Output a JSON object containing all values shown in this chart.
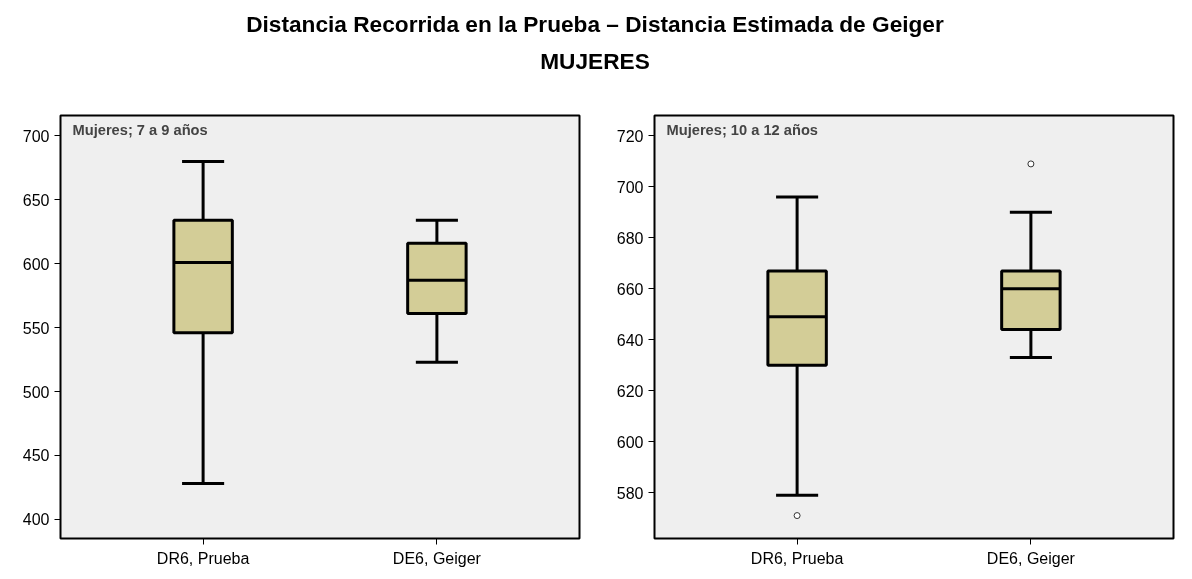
{
  "chart_data": [
    {
      "type": "box",
      "title": "Distancia Recorrida en la Prueba – Distancia Estimada de Geiger",
      "subtitle": "MUJERES",
      "annotations": [
        "Mujeres; 7 a 9 años"
      ],
      "categories": [
        "DR6, Prueba",
        "DE6, Geiger"
      ],
      "color": "#d3cd97",
      "ylim": [
        385,
        716
      ],
      "yticks": [
        400,
        450,
        500,
        550,
        600,
        650,
        700
      ],
      "grid": false,
      "boxes": [
        {
          "low": 428,
          "q1": 546,
          "median": 601,
          "q3": 634,
          "high": 680
        },
        {
          "low": 523,
          "q1": 561,
          "median": 587,
          "q3": 616,
          "high": 634
        }
      ]
    },
    {
      "type": "box",
      "annotations": [
        "Mujeres; 10 a 12 años"
      ],
      "categories": [
        "DR6, Prueba",
        "DE6, Geiger"
      ],
      "color": "#d3cd97",
      "ylim": [
        562,
        728
      ],
      "yticks": [
        580,
        600,
        620,
        640,
        660,
        680,
        700,
        720
      ],
      "grid": false,
      "boxes": [
        {
          "low": 579,
          "q1": 630,
          "median": 649,
          "q3": 667,
          "high": 696,
          "outliers": [
            571
          ]
        },
        {
          "low": 633,
          "q1": 644,
          "median": 660,
          "q3": 667,
          "high": 690,
          "outliers": [
            709
          ]
        }
      ]
    }
  ]
}
